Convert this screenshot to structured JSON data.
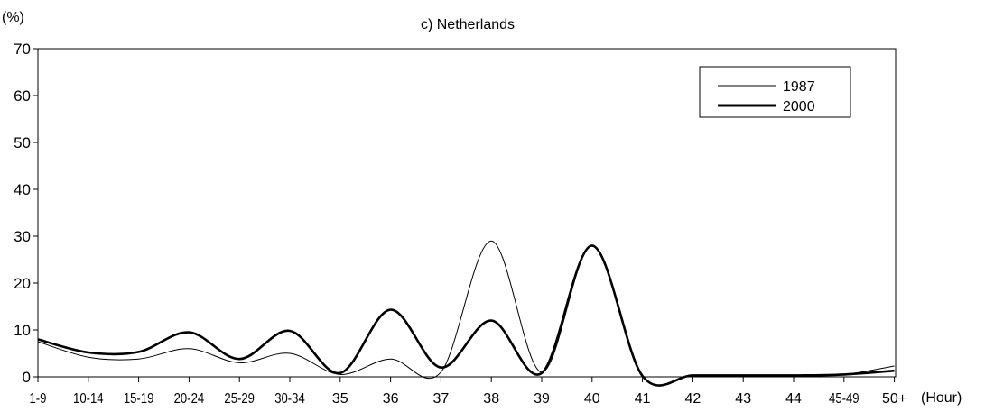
{
  "chart_data": {
    "type": "line",
    "title": "c) Netherlands",
    "ylabel": "(%)",
    "xlabel": "(Hour)",
    "ylim": [
      0,
      70
    ],
    "yticks": [
      0,
      10,
      20,
      30,
      40,
      50,
      60,
      70
    ],
    "grid": false,
    "legend_position": "top-right",
    "categories": [
      "1-9",
      "10-14",
      "15-19",
      "20-24",
      "25-29",
      "30-34",
      "35",
      "36",
      "37",
      "38",
      "39",
      "40",
      "41",
      "42",
      "43",
      "44",
      "45-49",
      "50+"
    ],
    "series": [
      {
        "name": "1987",
        "color": "#000000",
        "values": [
          7.5,
          4.2,
          3.8,
          6.0,
          3.0,
          5.0,
          0.5,
          3.8,
          1.0,
          29.0,
          1.0,
          28.0,
          0.2,
          0.2,
          0.2,
          0.2,
          0.5,
          2.3
        ]
      },
      {
        "name": "2000",
        "color": "#000000",
        "values": [
          8.0,
          5.2,
          5.3,
          9.5,
          3.8,
          9.8,
          0.8,
          14.3,
          2.0,
          12.0,
          0.8,
          28.0,
          0.2,
          0.3,
          0.3,
          0.3,
          0.5,
          1.3
        ]
      }
    ]
  }
}
